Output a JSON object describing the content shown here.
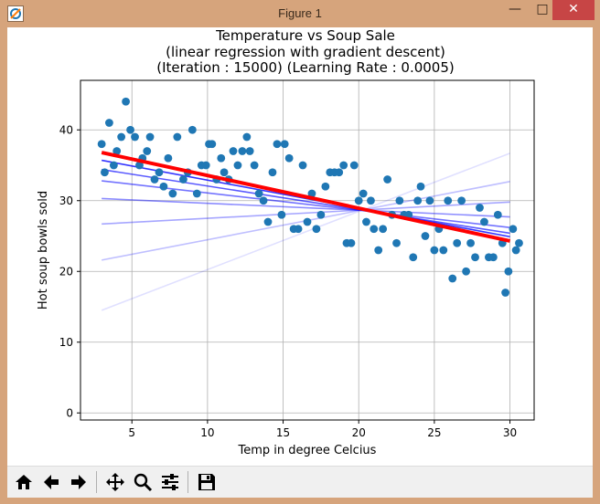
{
  "window": {
    "title": "Figure 1",
    "min_glyph": "—",
    "max_glyph": "□",
    "close_glyph": "✕"
  },
  "figure": {
    "title_lines": [
      "Temperature vs Soup Sale",
      "(linear regression with gradient descent)",
      "(Iteration : 15000) (Learning Rate : 0.0005)"
    ]
  },
  "chart_data": {
    "type": "scatter",
    "title": "Temperature vs Soup Sale\n(linear regression with gradient descent)\n(Iteration : 15000) (Learning Rate : 0.0005)",
    "xlabel": "Temp in degree Celcius",
    "ylabel": "Hot soup bowls sold",
    "xlim": [
      1.6,
      31.6
    ],
    "ylim": [
      -1,
      47
    ],
    "xticks": [
      5,
      10,
      15,
      20,
      25,
      30
    ],
    "yticks": [
      0,
      10,
      20,
      30,
      40
    ],
    "grid": true,
    "point_color": "#1f77b4",
    "final_line_color": "#ff0000",
    "iteration_line_color": "#0000ff",
    "points": [
      [
        3,
        38
      ],
      [
        3.2,
        34
      ],
      [
        3.5,
        41
      ],
      [
        3.8,
        35
      ],
      [
        4,
        37
      ],
      [
        4.3,
        39
      ],
      [
        4.6,
        44
      ],
      [
        4.9,
        40
      ],
      [
        5.2,
        39
      ],
      [
        5.5,
        35
      ],
      [
        5.7,
        36
      ],
      [
        6,
        37
      ],
      [
        6.2,
        39
      ],
      [
        6.5,
        33
      ],
      [
        6.8,
        34
      ],
      [
        7.1,
        32
      ],
      [
        7.4,
        36
      ],
      [
        7.7,
        31
      ],
      [
        8,
        39
      ],
      [
        8.4,
        33
      ],
      [
        8.7,
        34
      ],
      [
        9,
        40
      ],
      [
        9.3,
        31
      ],
      [
        9.6,
        35
      ],
      [
        9.9,
        35
      ],
      [
        10.1,
        38
      ],
      [
        10.3,
        38
      ],
      [
        10.6,
        33
      ],
      [
        10.9,
        36
      ],
      [
        11.1,
        34
      ],
      [
        11.4,
        33
      ],
      [
        11.7,
        37
      ],
      [
        12,
        35
      ],
      [
        12.3,
        37
      ],
      [
        12.6,
        39
      ],
      [
        12.8,
        37
      ],
      [
        13.1,
        35
      ],
      [
        13.4,
        31
      ],
      [
        13.7,
        30
      ],
      [
        14,
        27
      ],
      [
        14.3,
        34
      ],
      [
        14.6,
        38
      ],
      [
        14.9,
        28
      ],
      [
        15.1,
        38
      ],
      [
        15.4,
        36
      ],
      [
        15.7,
        26
      ],
      [
        16,
        26
      ],
      [
        16.3,
        35
      ],
      [
        16.6,
        27
      ],
      [
        16.9,
        31
      ],
      [
        17.2,
        26
      ],
      [
        17.5,
        28
      ],
      [
        17.8,
        32
      ],
      [
        18.1,
        34
      ],
      [
        18.4,
        34
      ],
      [
        18.7,
        34
      ],
      [
        19,
        35
      ],
      [
        19.2,
        24
      ],
      [
        19.5,
        24
      ],
      [
        19.7,
        35
      ],
      [
        20,
        30
      ],
      [
        20.3,
        31
      ],
      [
        20.5,
        27
      ],
      [
        20.8,
        30
      ],
      [
        21,
        26
      ],
      [
        21.3,
        23
      ],
      [
        21.6,
        26
      ],
      [
        21.9,
        33
      ],
      [
        22.2,
        28
      ],
      [
        22.5,
        24
      ],
      [
        22.7,
        30
      ],
      [
        23,
        28
      ],
      [
        23.3,
        28
      ],
      [
        23.6,
        22
      ],
      [
        23.9,
        30
      ],
      [
        24.1,
        32
      ],
      [
        24.4,
        25
      ],
      [
        24.7,
        30
      ],
      [
        25,
        23
      ],
      [
        25.3,
        26
      ],
      [
        25.6,
        23
      ],
      [
        25.9,
        30
      ],
      [
        26.2,
        19
      ],
      [
        26.5,
        24
      ],
      [
        26.8,
        30
      ],
      [
        27.1,
        20
      ],
      [
        27.4,
        24
      ],
      [
        27.7,
        22
      ],
      [
        28,
        29
      ],
      [
        28.3,
        27
      ],
      [
        28.6,
        22
      ],
      [
        28.9,
        22
      ],
      [
        29.2,
        28
      ],
      [
        29.5,
        24
      ],
      [
        29.7,
        17
      ],
      [
        29.9,
        20
      ],
      [
        30.2,
        26
      ],
      [
        30.4,
        23
      ],
      [
        30.6,
        24
      ]
    ],
    "iteration_lines": [
      {
        "y_start": 14.5,
        "y_end": 36.7,
        "alpha": 0.12
      },
      {
        "y_start": 21.6,
        "y_end": 32.7,
        "alpha": 0.25
      },
      {
        "y_start": 26.7,
        "y_end": 29.8,
        "alpha": 0.35
      },
      {
        "y_start": 30.3,
        "y_end": 27.7,
        "alpha": 0.45
      },
      {
        "y_start": 32.8,
        "y_end": 26.2,
        "alpha": 0.55
      },
      {
        "y_start": 34.4,
        "y_end": 25.4,
        "alpha": 0.65
      },
      {
        "y_start": 35.7,
        "y_end": 24.9,
        "alpha": 0.8
      }
    ],
    "final_line": {
      "x_start": 3,
      "x_end": 30,
      "y_start": 36.8,
      "y_end": 24.3
    }
  },
  "toolbar": {
    "items": [
      {
        "name": "home-button",
        "icon": "home-icon"
      },
      {
        "name": "back-button",
        "icon": "arrow-left-icon"
      },
      {
        "name": "forward-button",
        "icon": "arrow-right-icon"
      },
      {
        "name": "pan-button",
        "icon": "move-icon"
      },
      {
        "name": "zoom-button",
        "icon": "magnifier-icon"
      },
      {
        "name": "configure-subplots-button",
        "icon": "sliders-icon"
      },
      {
        "name": "save-button",
        "icon": "floppy-disk-icon"
      }
    ]
  }
}
